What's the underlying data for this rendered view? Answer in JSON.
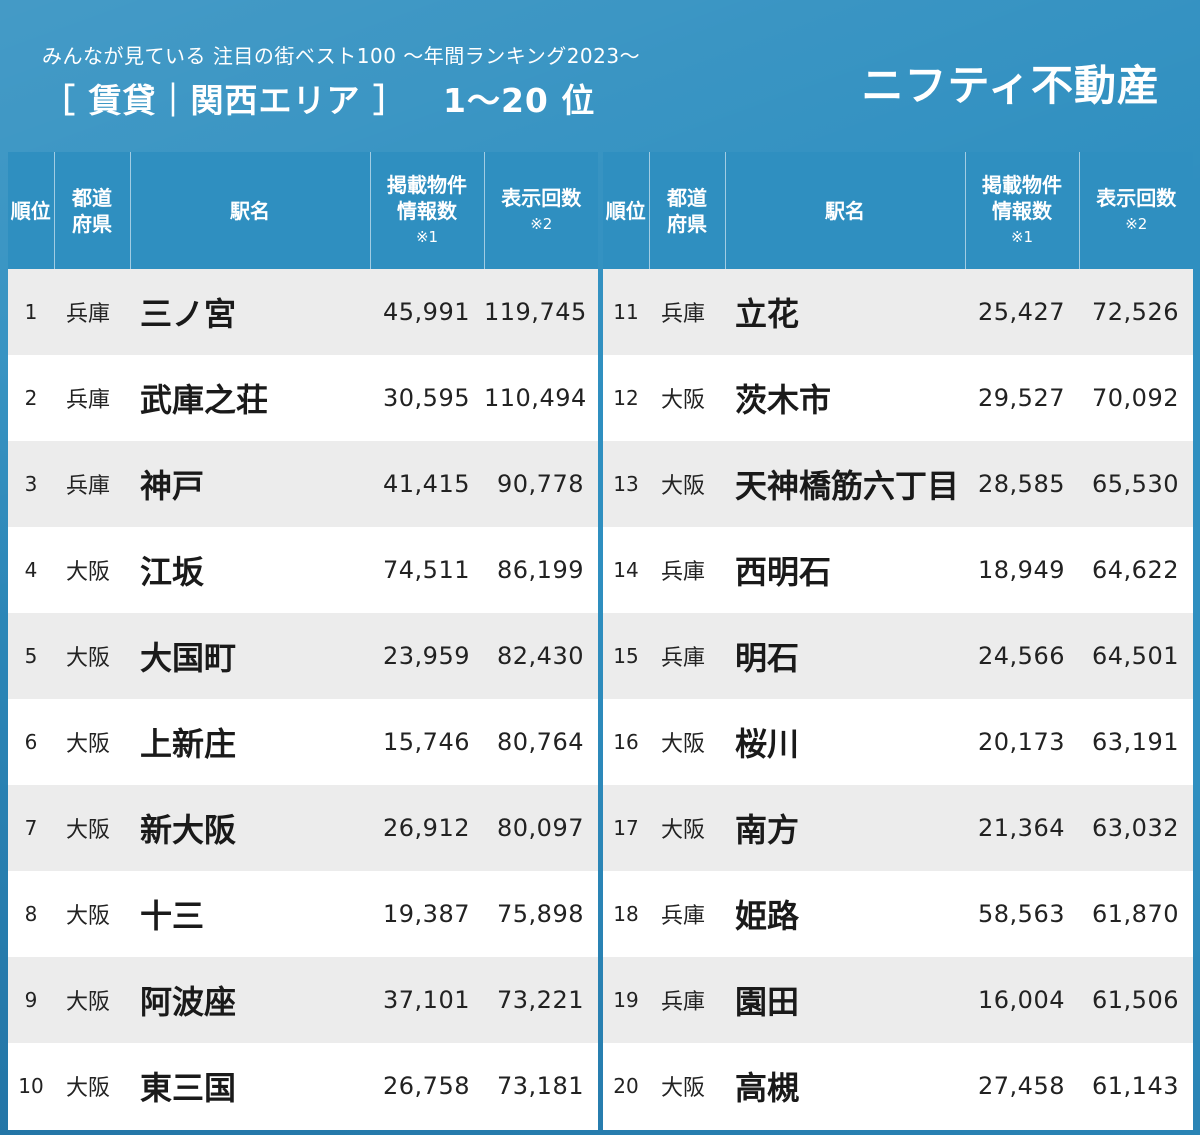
{
  "header": {
    "subtitle": "みんなが見ている 注目の街ベスト100 〜年間ランキング2023〜",
    "title_category": "［ 賃貸｜関西エリア ］",
    "title_range": "1〜20 位",
    "brand": "ニフティ不動産"
  },
  "columns": {
    "rank": "順位",
    "prefecture": "都道府県",
    "station": "駅名",
    "listings": "掲載物件情報数",
    "listings_note": "※1",
    "views": "表示回数",
    "views_note": "※2"
  },
  "colors": {
    "accent": "#2f8fc0",
    "row_alt": "#ececec"
  },
  "rows_left": [
    {
      "rank": "1",
      "pref": "兵庫",
      "station": "三ノ宮",
      "listings": "45,991",
      "views": "119,745"
    },
    {
      "rank": "2",
      "pref": "兵庫",
      "station": "武庫之荘",
      "listings": "30,595",
      "views": "110,494"
    },
    {
      "rank": "3",
      "pref": "兵庫",
      "station": "神戸",
      "listings": "41,415",
      "views": "90,778"
    },
    {
      "rank": "4",
      "pref": "大阪",
      "station": "江坂",
      "listings": "74,511",
      "views": "86,199"
    },
    {
      "rank": "5",
      "pref": "大阪",
      "station": "大国町",
      "listings": "23,959",
      "views": "82,430"
    },
    {
      "rank": "6",
      "pref": "大阪",
      "station": "上新庄",
      "listings": "15,746",
      "views": "80,764"
    },
    {
      "rank": "7",
      "pref": "大阪",
      "station": "新大阪",
      "listings": "26,912",
      "views": "80,097"
    },
    {
      "rank": "8",
      "pref": "大阪",
      "station": "十三",
      "listings": "19,387",
      "views": "75,898"
    },
    {
      "rank": "9",
      "pref": "大阪",
      "station": "阿波座",
      "listings": "37,101",
      "views": "73,221"
    },
    {
      "rank": "10",
      "pref": "大阪",
      "station": "東三国",
      "listings": "26,758",
      "views": "73,181"
    }
  ],
  "rows_right": [
    {
      "rank": "11",
      "pref": "兵庫",
      "station": "立花",
      "listings": "25,427",
      "views": "72,526"
    },
    {
      "rank": "12",
      "pref": "大阪",
      "station": "茨木市",
      "listings": "29,527",
      "views": "70,092"
    },
    {
      "rank": "13",
      "pref": "大阪",
      "station": "天神橋筋六丁目",
      "listings": "28,585",
      "views": "65,530"
    },
    {
      "rank": "14",
      "pref": "兵庫",
      "station": "西明石",
      "listings": "18,949",
      "views": "64,622"
    },
    {
      "rank": "15",
      "pref": "兵庫",
      "station": "明石",
      "listings": "24,566",
      "views": "64,501"
    },
    {
      "rank": "16",
      "pref": "大阪",
      "station": "桜川",
      "listings": "20,173",
      "views": "63,191"
    },
    {
      "rank": "17",
      "pref": "大阪",
      "station": "南方",
      "listings": "21,364",
      "views": "63,032"
    },
    {
      "rank": "18",
      "pref": "兵庫",
      "station": "姫路",
      "listings": "58,563",
      "views": "61,870"
    },
    {
      "rank": "19",
      "pref": "兵庫",
      "station": "園田",
      "listings": "16,004",
      "views": "61,506"
    },
    {
      "rank": "20",
      "pref": "大阪",
      "station": "高槻",
      "listings": "27,458",
      "views": "61,143"
    }
  ]
}
